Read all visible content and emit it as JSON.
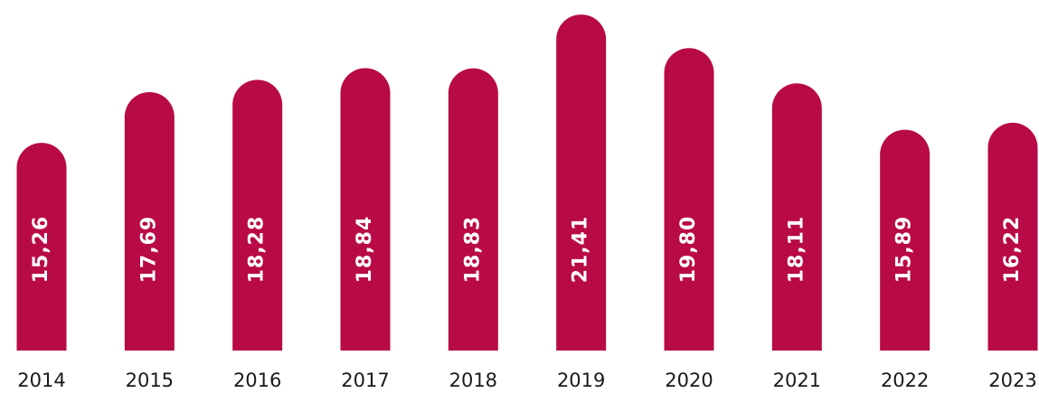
{
  "chart_data": {
    "type": "bar",
    "categories": [
      "2014",
      "2015",
      "2016",
      "2017",
      "2018",
      "2019",
      "2020",
      "2021",
      "2022",
      "2023"
    ],
    "values": [
      15.26,
      17.69,
      18.28,
      18.84,
      18.83,
      21.41,
      19.8,
      18.11,
      15.89,
      16.22
    ],
    "value_labels": [
      "15,26",
      "17,69",
      "18,28",
      "18,84",
      "18,83",
      "21,41",
      "19,80",
      "18,11",
      "15,89",
      "16,22"
    ],
    "color": "#b80a46",
    "ylim": [
      5.3,
      21.5
    ]
  }
}
